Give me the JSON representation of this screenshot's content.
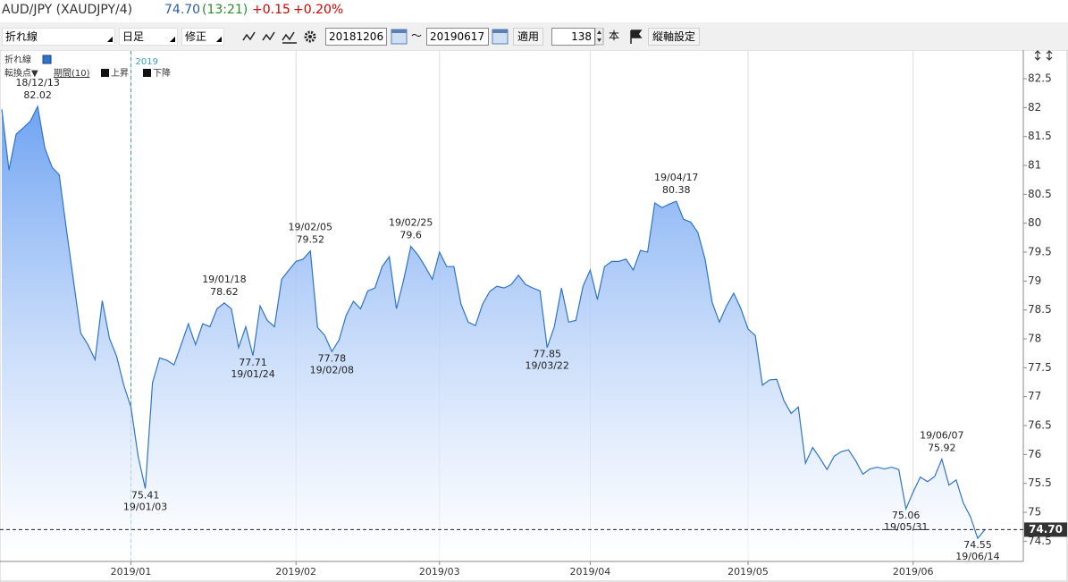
{
  "header": {
    "symbol": "AUD/JPY (XAUDJPY/4)",
    "price": "74.70",
    "time": "(13:21)",
    "change": "+0.15",
    "change_pct": "+0.20%"
  },
  "toolbar": {
    "chart_type": "折れ線",
    "period": "日足",
    "adjust": "修正",
    "start": "20181206",
    "tilde": "〜",
    "end": "20190617",
    "apply": "適用",
    "count": "138",
    "count_unit": "本",
    "axis_settings": "縦軸設定"
  },
  "chart_data": {
    "type": "line",
    "year_marker": "2019",
    "panel": {
      "turning_point": "転換点▼",
      "period": "期間(10)",
      "up": "上昇",
      "down": "下降"
    },
    "categories": [
      null,
      null,
      null,
      null,
      null,
      null,
      null,
      null,
      null,
      null,
      null,
      null,
      null,
      null,
      null,
      null,
      null,
      null,
      "2019/01",
      null,
      null,
      null,
      null,
      null,
      null,
      null,
      null,
      null,
      null,
      null,
      null,
      null,
      null,
      null,
      null,
      null,
      null,
      null,
      null,
      null,
      null,
      "2019/02",
      null,
      null,
      null,
      null,
      null,
      null,
      null,
      null,
      null,
      null,
      null,
      null,
      null,
      null,
      null,
      null,
      null,
      null,
      null,
      "2019/03",
      null,
      null,
      null,
      null,
      null,
      null,
      null,
      null,
      null,
      null,
      null,
      null,
      null,
      null,
      null,
      null,
      null,
      null,
      null,
      null,
      "2019/04",
      null,
      null,
      null,
      null,
      null,
      null,
      null,
      null,
      null,
      null,
      null,
      null,
      null,
      null,
      null,
      null,
      null,
      null,
      null,
      null,
      null,
      "2019/05",
      null,
      null,
      null,
      null,
      null,
      null,
      null,
      null,
      null,
      null,
      null,
      null,
      null,
      null,
      null,
      null,
      null,
      null,
      null,
      null,
      null,
      null,
      "2019/06",
      null,
      null,
      null,
      null,
      null,
      null,
      null,
      null,
      null,
      null
    ],
    "point_labels": [
      null,
      null,
      null,
      null,
      null,
      "18/12/13",
      null,
      null,
      null,
      null,
      null,
      null,
      null,
      null,
      null,
      null,
      null,
      null,
      null,
      null,
      "19/01/03",
      null,
      null,
      null,
      null,
      null,
      null,
      null,
      null,
      null,
      null,
      "19/01/18",
      null,
      null,
      null,
      "19/01/24",
      null,
      null,
      null,
      null,
      null,
      null,
      null,
      "19/02/05",
      null,
      null,
      "19/02/08",
      null,
      null,
      null,
      null,
      null,
      null,
      null,
      null,
      null,
      null,
      "19/02/25",
      null,
      null,
      null,
      null,
      null,
      null,
      null,
      null,
      null,
      null,
      null,
      null,
      null,
      null,
      null,
      null,
      null,
      null,
      "19/03/22",
      null,
      null,
      null,
      null,
      null,
      null,
      null,
      null,
      null,
      null,
      null,
      null,
      null,
      null,
      null,
      null,
      null,
      "19/04/17",
      null,
      null,
      null,
      null,
      null,
      null,
      null,
      null,
      null,
      null,
      null,
      null,
      null,
      null,
      null,
      null,
      null,
      null,
      null,
      null,
      null,
      null,
      null,
      null,
      null,
      null,
      null,
      null,
      null,
      null,
      null,
      "19/05/31",
      null,
      null,
      null,
      null,
      "19/06/07",
      null,
      null,
      null,
      null,
      "19/06/14",
      null
    ],
    "series": [
      {
        "name": "折れ線",
        "color": "#2f74c9",
        "fill_color": "#6fa3f2",
        "values": [
          81.97,
          80.92,
          81.54,
          81.65,
          81.77,
          82.02,
          81.3,
          80.97,
          80.84,
          79.9,
          79.0,
          78.1,
          77.9,
          77.64,
          78.66,
          78.01,
          77.7,
          77.2,
          76.82,
          75.97,
          75.41,
          77.24,
          77.67,
          77.63,
          77.55,
          77.9,
          78.26,
          77.9,
          78.26,
          78.21,
          78.52,
          78.62,
          78.52,
          77.85,
          78.21,
          77.71,
          78.57,
          78.32,
          78.21,
          79.03,
          79.19,
          79.34,
          79.38,
          79.52,
          78.2,
          78.06,
          77.78,
          77.98,
          78.41,
          78.65,
          78.52,
          78.83,
          78.88,
          79.25,
          79.42,
          78.52,
          79.02,
          79.6,
          79.45,
          79.25,
          79.03,
          79.5,
          79.25,
          79.25,
          78.6,
          78.29,
          78.23,
          78.6,
          78.82,
          78.91,
          78.88,
          78.94,
          79.1,
          78.94,
          78.88,
          78.83,
          77.85,
          78.21,
          78.88,
          78.29,
          78.32,
          78.91,
          79.19,
          78.68,
          79.25,
          79.34,
          79.34,
          79.38,
          79.19,
          79.53,
          79.5,
          80.35,
          80.27,
          80.33,
          80.38,
          80.07,
          80.02,
          79.84,
          79.38,
          78.63,
          78.29,
          78.57,
          78.79,
          78.52,
          78.17,
          78.06,
          77.2,
          77.29,
          77.3,
          76.93,
          76.71,
          76.82,
          75.85,
          76.12,
          75.94,
          75.74,
          75.97,
          76.05,
          76.08,
          75.89,
          75.66,
          75.75,
          75.78,
          75.75,
          75.78,
          75.74,
          75.06,
          75.35,
          75.61,
          75.53,
          75.62,
          75.92,
          75.47,
          75.56,
          75.16,
          74.92,
          74.55,
          74.7
        ]
      }
    ],
    "ylim": [
      74.15,
      82.98
    ],
    "yticks": [
      74.5,
      75,
      75.5,
      76,
      76.5,
      77,
      77.5,
      78,
      78.5,
      79,
      79.5,
      80,
      80.5,
      81,
      81.5,
      82,
      82.5
    ],
    "grid": "x"
  }
}
